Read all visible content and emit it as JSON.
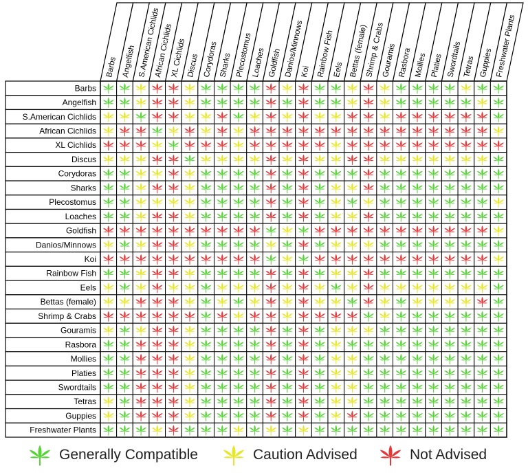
{
  "colors": {
    "G": "#5ad23a",
    "C": "#e6e62a",
    "N": "#e23a3a"
  },
  "legend": [
    {
      "code": "G",
      "label": "Generally Compatible"
    },
    {
      "code": "C",
      "label": "Caution Advised"
    },
    {
      "code": "N",
      "label": "Not Advised"
    }
  ],
  "chart_data": {
    "type": "heatmap",
    "title": "",
    "columns": [
      "Barbs",
      "Angelfish",
      "S.American Cichlids",
      "African Cichlids",
      "XL Cichlids",
      "Discus",
      "Corydoras",
      "Sharks",
      "Plecostomus",
      "Loaches",
      "Goldfish",
      "Danios/Minnows",
      "Koi",
      "Rainbow Fish",
      "Eels",
      "Bettas (female)",
      "Shrimp & Crabs",
      "Gouramis",
      "Rasbora",
      "Mollies",
      "Platies",
      "Swordtails",
      "Tetras",
      "Guppies",
      "Freshwater Plants"
    ],
    "rows": [
      "Barbs",
      "Angelfish",
      "S.American Cichlids",
      "African Cichlids",
      "XL Cichlids",
      "Discus",
      "Corydoras",
      "Sharks",
      "Plecostomus",
      "Loaches",
      "Goldfish",
      "Danios/Minnows",
      "Koi",
      "Rainbow Fish",
      "Eels",
      "Bettas (female)",
      "Shrimp & Crabs",
      "Gouramis",
      "Rasbora",
      "Mollies",
      "Platies",
      "Swordtails",
      "Tetras",
      "Guppies",
      "Freshwater Plants"
    ],
    "values": [
      "GGCNNCGGGGNCNGGCNCGGGGCGG",
      "GGCNNCGGGGNGNGGCNCGGGGGCG",
      "CCGNNCCNGCNCNCCNNCNNNNNNG",
      "CNNGCNCNCNNNNNNNNNNNNNNNC",
      "NNNCGNNNCNNNNNCNNNNNNNNNN",
      "CCCNNGCCCCNCNCCNNCCCCCCCG",
      "GGCCNCGGGGNGNGGGNGGGGGGGG",
      "GGCNNCGGGGNGNGCCNGGGGGGGG",
      "GGCCCCGGGGNGNGCGCGGGGGGGC",
      "GGCNNCGGGGNGNGCCNGGGGGGGG",
      "NNNNNNNNNNGCGNNNNNNNNNNNC",
      "CGCNNCGGGGCGNGCCCGGGGGGGG",
      "NNNNNNNNNNGCGNNNNNNNNNNNC",
      "GGCNNCGGGGNGNGCCNGGGGGGGG",
      "CGCNCCGCCCNCNCGCNCCCCCCCG",
      "CCNNNCGCGCNCNCCGNCGCCCCNG",
      "NNNNNNGNCNNCNNNNGCGGGGGGG",
      "CGCNNCGGGGNGNGCCCGGGGGGGG",
      "GGNNNCGGGGNGNGCGGGGGGGGGG",
      "GGNNNCGGGGNGNGCCGGGGGGGGG",
      "GGNNNCGGGGNGNGCCGGGGGGGGG",
      "GGNNNCGGGGNGNGCCGGGGGGGGG",
      "CGNNNCGGGGNGNGCCGGGGGGGGG",
      "CGNNNCGGGGNGNGCNGGGGGGGGG",
      "GGGCNGGGCGCGCGGGGGGGGGGGG"
    ],
    "value_legend": {
      "G": "Generally Compatible",
      "C": "Caution Advised",
      "N": "Not Advised"
    }
  }
}
